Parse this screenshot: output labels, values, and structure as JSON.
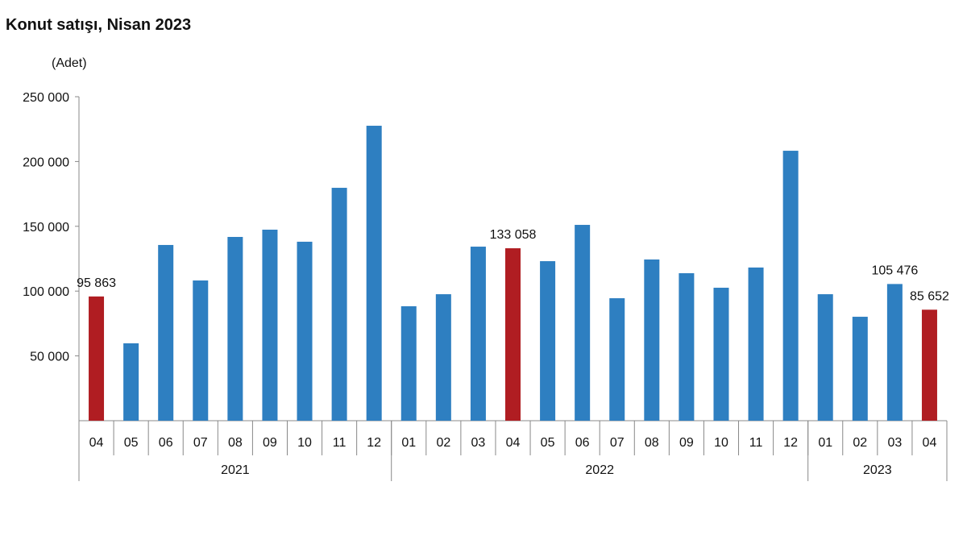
{
  "chart_data": {
    "type": "bar",
    "title": "Konut satışı, Nisan 2023",
    "ylabel": "(Adet)",
    "ylim": [
      0,
      250000
    ],
    "yticks": [
      50000,
      100000,
      150000,
      200000,
      250000
    ],
    "ytick_labels": [
      "50 000",
      "100 000",
      "150 000",
      "200 000",
      "250 000"
    ],
    "grid": false,
    "categories": [
      "04",
      "05",
      "06",
      "07",
      "08",
      "09",
      "10",
      "11",
      "12",
      "01",
      "02",
      "03",
      "04",
      "05",
      "06",
      "07",
      "08",
      "09",
      "10",
      "11",
      "12",
      "01",
      "02",
      "03",
      "04"
    ],
    "groups": [
      {
        "label": "2021",
        "count": 9
      },
      {
        "label": "2022",
        "count": 12
      },
      {
        "label": "2023",
        "count": 4
      }
    ],
    "values": [
      95863,
      59700,
      135600,
      108200,
      141800,
      147400,
      138100,
      179700,
      227600,
      88300,
      97600,
      134300,
      133058,
      123100,
      151100,
      94500,
      124400,
      113800,
      102600,
      118200,
      208300,
      97600,
      80200,
      105476,
      85652
    ],
    "highlight": [
      0,
      12,
      24
    ],
    "data_labels": [
      {
        "index": 0,
        "text": "95 863"
      },
      {
        "index": 12,
        "text": "133 058"
      },
      {
        "index": 23,
        "text": "105 476"
      },
      {
        "index": 24,
        "text": "85 652"
      }
    ],
    "colors": {
      "bar": "#2e7fc1",
      "highlight": "#b01d22",
      "axis": "#888888"
    }
  }
}
